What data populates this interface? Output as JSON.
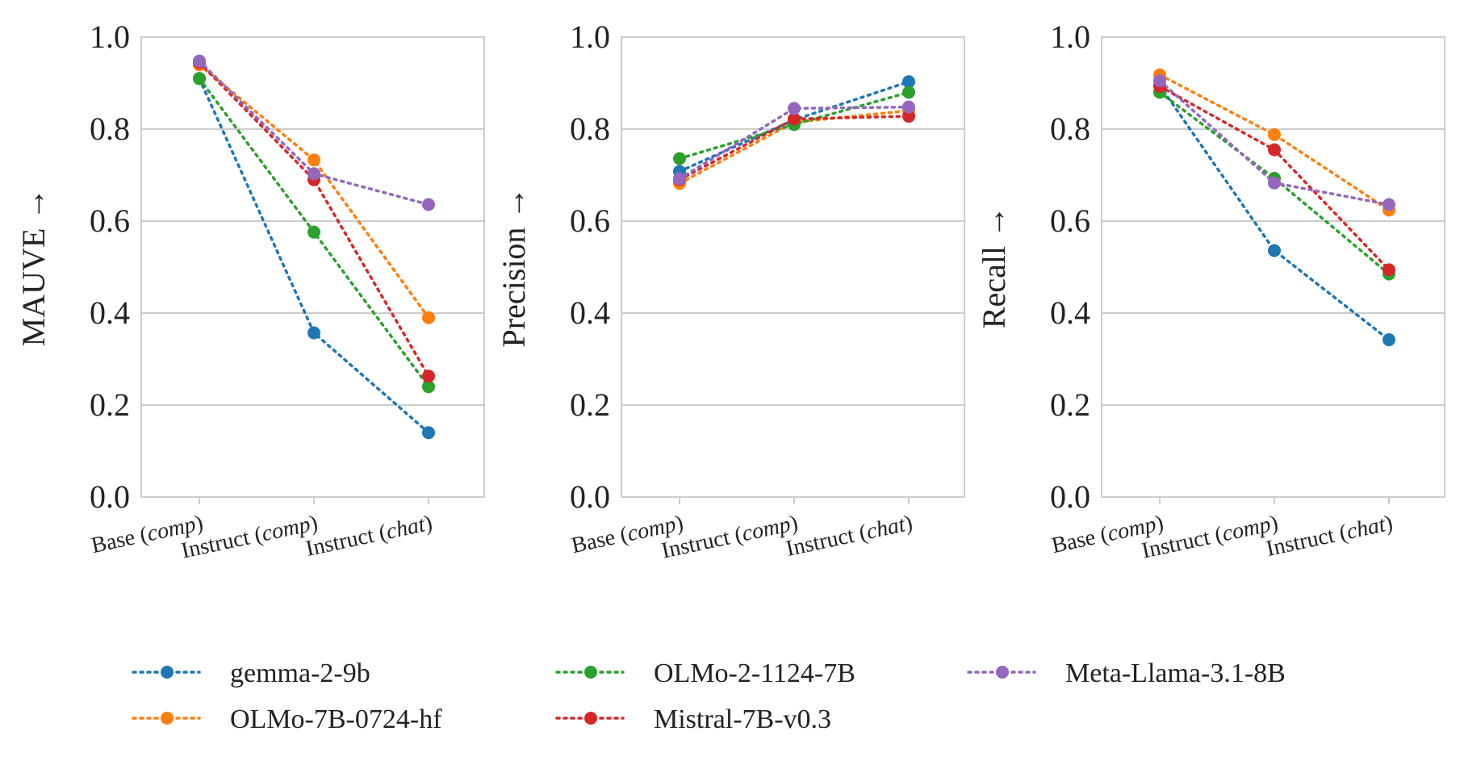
{
  "colors": {
    "grid": "#cccccc",
    "frame": "#cccccc",
    "text": "#222222",
    "series": {
      "gemma-2-9b": "#1f77b4",
      "OLMo-7B-0724-hf": "#ff7f0e",
      "OLMo-2-1124-7B": "#2ca02c",
      "Mistral-7B-v0.3": "#d62728",
      "Meta-Llama-3.1-8B": "#9467bd"
    }
  },
  "chart_data": [
    {
      "type": "line",
      "ylabel": "MAUVE →",
      "ylim": [
        0,
        1
      ],
      "yticks": [
        "0.0",
        "0.2",
        "0.4",
        "0.6",
        "0.8",
        "1.0"
      ],
      "categories": [
        {
          "base": "Base (",
          "em": "comp",
          "close": ")"
        },
        {
          "base": "Instruct (",
          "em": "comp",
          "close": ")"
        },
        {
          "base": "Instruct (",
          "em": "chat",
          "close": ")"
        }
      ],
      "series": [
        {
          "name": "gemma-2-9b",
          "values": [
            0.91,
            0.357,
            0.14
          ]
        },
        {
          "name": "OLMo-7B-0724-hf",
          "values": [
            0.94,
            0.733,
            0.39
          ]
        },
        {
          "name": "OLMo-2-1124-7B",
          "values": [
            0.91,
            0.576,
            0.24
          ]
        },
        {
          "name": "Mistral-7B-v0.3",
          "values": [
            0.945,
            0.69,
            0.263
          ]
        },
        {
          "name": "Meta-Llama-3.1-8B",
          "values": [
            0.948,
            0.703,
            0.636
          ]
        }
      ]
    },
    {
      "type": "line",
      "ylabel": "Precision →",
      "ylim": [
        0,
        1
      ],
      "yticks": [
        "0.0",
        "0.2",
        "0.4",
        "0.6",
        "0.8",
        "1.0"
      ],
      "categories": [
        {
          "base": "Base (",
          "em": "comp",
          "close": ")"
        },
        {
          "base": "Instruct (",
          "em": "comp",
          "close": ")"
        },
        {
          "base": "Instruct (",
          "em": "chat",
          "close": ")"
        }
      ],
      "series": [
        {
          "name": "gemma-2-9b",
          "values": [
            0.708,
            0.82,
            0.903
          ]
        },
        {
          "name": "OLMo-7B-0724-hf",
          "values": [
            0.682,
            0.815,
            0.84
          ]
        },
        {
          "name": "OLMo-2-1124-7B",
          "values": [
            0.736,
            0.81,
            0.88
          ]
        },
        {
          "name": "Mistral-7B-v0.3",
          "values": [
            0.69,
            0.822,
            0.828
          ]
        },
        {
          "name": "Meta-Llama-3.1-8B",
          "values": [
            0.692,
            0.845,
            0.848
          ]
        }
      ]
    },
    {
      "type": "line",
      "ylabel": "Recall →",
      "ylim": [
        0,
        1
      ],
      "yticks": [
        "0.0",
        "0.2",
        "0.4",
        "0.6",
        "0.8",
        "1.0"
      ],
      "categories": [
        {
          "base": "Base (",
          "em": "comp",
          "close": ")"
        },
        {
          "base": "Instruct (",
          "em": "comp",
          "close": ")"
        },
        {
          "base": "Instruct (",
          "em": "chat",
          "close": ")"
        }
      ],
      "series": [
        {
          "name": "gemma-2-9b",
          "values": [
            0.895,
            0.536,
            0.342
          ]
        },
        {
          "name": "OLMo-7B-0724-hf",
          "values": [
            0.918,
            0.788,
            0.624
          ]
        },
        {
          "name": "OLMo-2-1124-7B",
          "values": [
            0.88,
            0.693,
            0.485
          ]
        },
        {
          "name": "Mistral-7B-v0.3",
          "values": [
            0.893,
            0.755,
            0.494
          ]
        },
        {
          "name": "Meta-Llama-3.1-8B",
          "values": [
            0.905,
            0.683,
            0.636
          ]
        }
      ]
    }
  ],
  "legend": {
    "placement": "bottom",
    "entries": [
      "gemma-2-9b",
      "OLMo-2-1124-7B",
      "Meta-Llama-3.1-8B",
      "OLMo-7B-0724-hf",
      "Mistral-7B-v0.3"
    ]
  }
}
